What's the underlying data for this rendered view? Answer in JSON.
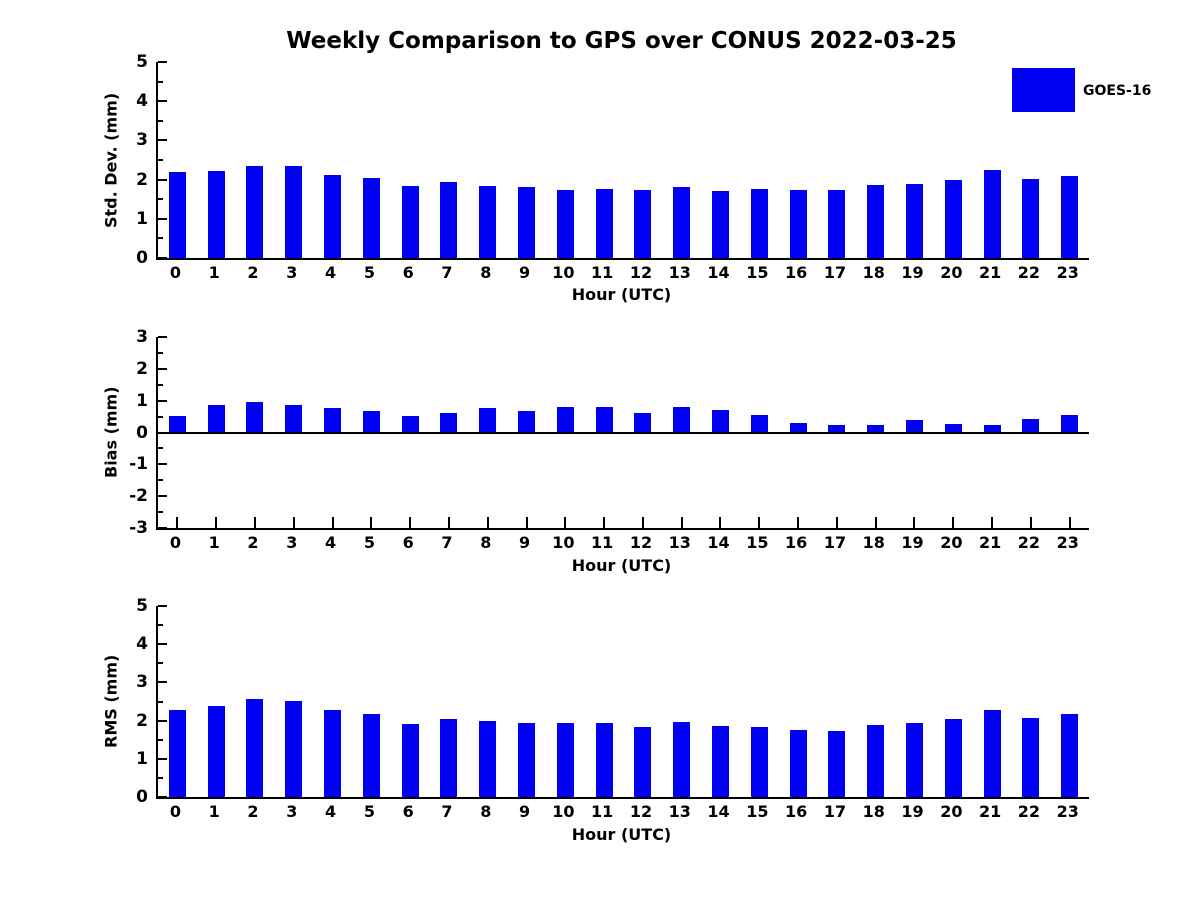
{
  "chart_data": {
    "type": "bar",
    "title": "Weekly Comparison to GPS over CONUS 2022-03-25",
    "xlabel": "Hour (UTC)",
    "categories": [
      "0",
      "1",
      "2",
      "3",
      "4",
      "5",
      "6",
      "7",
      "8",
      "9",
      "10",
      "11",
      "12",
      "13",
      "14",
      "15",
      "16",
      "17",
      "18",
      "19",
      "20",
      "21",
      "22",
      "23"
    ],
    "legend": {
      "label": "GOES-16",
      "position": "top-right"
    },
    "bar_color": "#0000f4",
    "grid": false,
    "subplots": [
      {
        "ylabel": "Std. Dev. (mm)",
        "ylim": [
          0,
          5
        ],
        "yticks": [
          0,
          1,
          2,
          3,
          4,
          5
        ],
        "values": [
          2.2,
          2.22,
          2.35,
          2.35,
          2.12,
          2.05,
          1.83,
          1.93,
          1.83,
          1.8,
          1.73,
          1.75,
          1.74,
          1.82,
          1.71,
          1.77,
          1.74,
          1.74,
          1.86,
          1.89,
          1.99,
          2.25,
          2.02,
          2.1
        ]
      },
      {
        "ylabel": "Bias (mm)",
        "ylim": [
          -3,
          3
        ],
        "yticks": [
          -3,
          -2,
          -1,
          0,
          1,
          2,
          3
        ],
        "values": [
          0.52,
          0.85,
          0.97,
          0.85,
          0.77,
          0.67,
          0.52,
          0.62,
          0.77,
          0.67,
          0.81,
          0.81,
          0.62,
          0.79,
          0.71,
          0.56,
          0.31,
          0.22,
          0.25,
          0.38,
          0.28,
          0.25,
          0.42,
          0.56
        ]
      },
      {
        "ylabel": "RMS (mm)",
        "ylim": [
          0,
          5
        ],
        "yticks": [
          0,
          1,
          2,
          3,
          4,
          5
        ],
        "values": [
          2.28,
          2.38,
          2.57,
          2.51,
          2.28,
          2.17,
          1.91,
          2.04,
          1.99,
          1.93,
          1.93,
          1.93,
          1.84,
          1.97,
          1.86,
          1.84,
          1.76,
          1.74,
          1.89,
          1.95,
          2.04,
          2.29,
          2.08,
          2.17
        ]
      }
    ]
  }
}
